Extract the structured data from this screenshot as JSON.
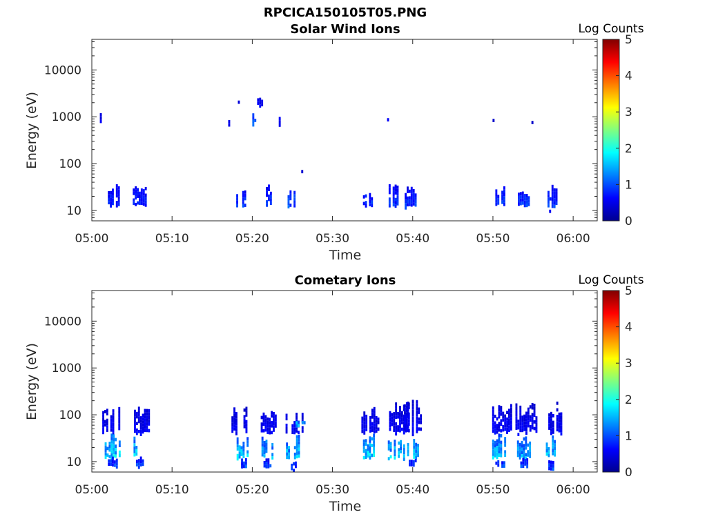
{
  "figure": {
    "title": "RPCICA150105T05.PNG"
  },
  "colors": {
    "colormap": [
      "#00008f",
      "#0000ff",
      "#0080ff",
      "#00ffff",
      "#80ff80",
      "#ffff00",
      "#ff8000",
      "#ff0000",
      "#800000"
    ],
    "axis": "#262626"
  },
  "chart_data": [
    {
      "type": "heatmap",
      "title": "Solar Wind Ions",
      "xlabel": "Time",
      "ylabel": "Energy (eV)",
      "x_ticks": [
        "05:00",
        "05:10",
        "05:20",
        "05:30",
        "05:40",
        "05:50",
        "06:00"
      ],
      "x_range_minutes": [
        0,
        63
      ],
      "y_scale": "log",
      "y_ticks": [
        "10",
        "100",
        "1000",
        "10000"
      ],
      "y_range": [
        6,
        45000
      ],
      "colorbar": {
        "label": "Log Counts",
        "ticks": [
          "0",
          "1",
          "2",
          "3",
          "4",
          "5"
        ],
        "range": [
          0,
          5
        ]
      },
      "grid": false,
      "blobs": [
        {
          "t": [
            1.0,
            1.2
          ],
          "e": [
            700,
            1300
          ],
          "v": 0.6
        },
        {
          "t": [
            2.0,
            3.4
          ],
          "e": [
            12,
            38
          ],
          "v": 0.8
        },
        {
          "t": [
            5.1,
            6.6
          ],
          "e": [
            12,
            38
          ],
          "v": 0.8
        },
        {
          "t": [
            17.0,
            17.2
          ],
          "e": [
            700,
            1300
          ],
          "v": 0.6
        },
        {
          "t": [
            18.2,
            18.4
          ],
          "e": [
            2000,
            2300
          ],
          "v": 0.5
        },
        {
          "t": [
            18.0,
            19.3
          ],
          "e": [
            12,
            32
          ],
          "v": 0.9
        },
        {
          "t": [
            20.0,
            20.4
          ],
          "e": [
            650,
            1300
          ],
          "v": 1.1
        },
        {
          "t": [
            20.6,
            21.2
          ],
          "e": [
            1800,
            2600
          ],
          "v": 0.6
        },
        {
          "t": [
            21.2,
            22.3
          ],
          "e": [
            12,
            38
          ],
          "v": 0.9
        },
        {
          "t": [
            23.3,
            23.6
          ],
          "e": [
            650,
            1200
          ],
          "v": 0.7
        },
        {
          "t": [
            24.4,
            25.4
          ],
          "e": [
            12,
            38
          ],
          "v": 1.0
        },
        {
          "t": [
            26.1,
            26.3
          ],
          "e": [
            65,
            75
          ],
          "v": 0.6
        },
        {
          "t": [
            33.6,
            33.9
          ],
          "e": [
            650,
            1200
          ],
          "v": 0.6
        },
        {
          "t": [
            33.8,
            35.2
          ],
          "e": [
            12,
            32
          ],
          "v": 0.9
        },
        {
          "t": [
            36.8,
            37.0
          ],
          "e": [
            850,
            1000
          ],
          "v": 0.6
        },
        {
          "t": [
            37.0,
            38.2
          ],
          "e": [
            12,
            38
          ],
          "v": 0.9
        },
        {
          "t": [
            39.0,
            40.4
          ],
          "e": [
            12,
            33
          ],
          "v": 0.9
        },
        {
          "t": [
            49.7,
            50.3
          ],
          "e": [
            800,
            1000
          ],
          "v": 0.5
        },
        {
          "t": [
            50.3,
            51.3
          ],
          "e": [
            12,
            33
          ],
          "v": 0.9
        },
        {
          "t": [
            53.1,
            54.4
          ],
          "e": [
            12,
            33
          ],
          "v": 0.9
        },
        {
          "t": [
            54.8,
            55.0
          ],
          "e": [
            750,
            850
          ],
          "v": 0.5
        },
        {
          "t": [
            56.8,
            58.0
          ],
          "e": [
            12,
            40
          ],
          "v": 0.9
        },
        {
          "t": [
            57.0,
            57.2
          ],
          "e": [
            8,
            12
          ],
          "v": 0.6
        }
      ]
    },
    {
      "type": "heatmap",
      "title": "Cometary Ions",
      "xlabel": "Time",
      "ylabel": "Energy (eV)",
      "x_ticks": [
        "05:00",
        "05:10",
        "05:20",
        "05:30",
        "05:40",
        "05:50",
        "06:00"
      ],
      "x_range_minutes": [
        0,
        63
      ],
      "y_scale": "log",
      "y_ticks": [
        "10",
        "100",
        "1000",
        "10000"
      ],
      "y_range": [
        6,
        45000
      ],
      "colorbar": {
        "label": "Log Counts",
        "ticks": [
          "0",
          "1",
          "2",
          "3",
          "4",
          "5"
        ],
        "range": [
          0,
          5
        ]
      },
      "grid": false,
      "blobs": [
        {
          "t": [
            1.3,
            3.6
          ],
          "e": [
            40,
            180
          ],
          "v": 0.6
        },
        {
          "t": [
            1.6,
            3.4
          ],
          "e": [
            12,
            40
          ],
          "v": 1.7
        },
        {
          "t": [
            2.0,
            3.0
          ],
          "e": [
            8,
            13
          ],
          "v": 1.0
        },
        {
          "t": [
            5.0,
            7.0
          ],
          "e": [
            40,
            160
          ],
          "v": 0.6
        },
        {
          "t": [
            5.2,
            6.6
          ],
          "e": [
            12,
            40
          ],
          "v": 1.7
        },
        {
          "t": [
            5.5,
            6.4
          ],
          "e": [
            8,
            13
          ],
          "v": 1.0
        },
        {
          "t": [
            17.4,
            19.6
          ],
          "e": [
            40,
            150
          ],
          "v": 0.6
        },
        {
          "t": [
            17.8,
            19.4
          ],
          "e": [
            12,
            40
          ],
          "v": 1.6
        },
        {
          "t": [
            18.6,
            19.2
          ],
          "e": [
            8,
            12
          ],
          "v": 1.0
        },
        {
          "t": [
            20.8,
            22.9
          ],
          "e": [
            40,
            140
          ],
          "v": 0.6
        },
        {
          "t": [
            20.9,
            22.6
          ],
          "e": [
            12,
            40
          ],
          "v": 1.5
        },
        {
          "t": [
            21.4,
            22.2
          ],
          "e": [
            8,
            12
          ],
          "v": 1.0
        },
        {
          "t": [
            23.9,
            26.2
          ],
          "e": [
            40,
            120
          ],
          "v": 0.6
        },
        {
          "t": [
            24.2,
            25.8
          ],
          "e": [
            12,
            40
          ],
          "v": 1.6
        },
        {
          "t": [
            25.4,
            26.4
          ],
          "e": [
            60,
            85
          ],
          "v": 1.6
        },
        {
          "t": [
            24.8,
            25.6
          ],
          "e": [
            7,
            12
          ],
          "v": 1.0
        },
        {
          "t": [
            33.6,
            35.8
          ],
          "e": [
            40,
            160
          ],
          "v": 0.6
        },
        {
          "t": [
            33.8,
            35.4
          ],
          "e": [
            12,
            40
          ],
          "v": 1.7
        },
        {
          "t": [
            36.8,
            39.3
          ],
          "e": [
            40,
            200
          ],
          "v": 0.6
        },
        {
          "t": [
            36.9,
            38.4
          ],
          "e": [
            12,
            40
          ],
          "v": 1.6
        },
        {
          "t": [
            38.9,
            41.3
          ],
          "e": [
            40,
            220
          ],
          "v": 0.6
        },
        {
          "t": [
            38.8,
            40.6
          ],
          "e": [
            12,
            40
          ],
          "v": 1.6
        },
        {
          "t": [
            39.5,
            40.3
          ],
          "e": [
            8,
            12
          ],
          "v": 1.0
        },
        {
          "t": [
            49.9,
            52.3
          ],
          "e": [
            40,
            180
          ],
          "v": 0.6
        },
        {
          "t": [
            49.9,
            51.4
          ],
          "e": [
            12,
            40
          ],
          "v": 1.6
        },
        {
          "t": [
            50.3,
            51.4
          ],
          "e": [
            8,
            12
          ],
          "v": 1.0
        },
        {
          "t": [
            52.8,
            55.3
          ],
          "e": [
            40,
            180
          ],
          "v": 0.6
        },
        {
          "t": [
            53.0,
            54.5
          ],
          "e": [
            12,
            40
          ],
          "v": 1.5
        },
        {
          "t": [
            53.4,
            54.2
          ],
          "e": [
            8,
            12
          ],
          "v": 1.0
        },
        {
          "t": [
            56.4,
            58.6
          ],
          "e": [
            40,
            200
          ],
          "v": 0.6
        },
        {
          "t": [
            56.6,
            58.0
          ],
          "e": [
            12,
            40
          ],
          "v": 1.6
        },
        {
          "t": [
            56.9,
            57.6
          ],
          "e": [
            7,
            12
          ],
          "v": 1.0
        }
      ]
    }
  ]
}
